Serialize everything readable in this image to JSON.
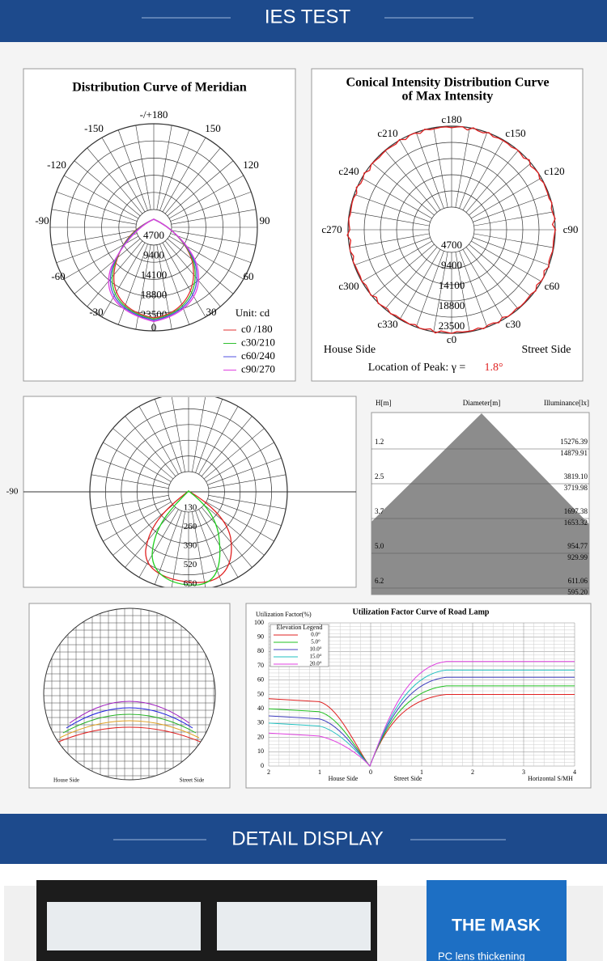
{
  "ies_banner": {
    "title": "IES TEST"
  },
  "meridian": {
    "title": "Distribution Curve of  Meridian",
    "angle_labels": [
      "-/+180",
      "-150",
      "150",
      "-120",
      "120",
      "-90",
      "90",
      "-60",
      "60",
      "-30",
      "30",
      "0"
    ],
    "radial_labels": [
      "4700",
      "9400",
      "14100",
      "18800",
      "23500"
    ],
    "unit": "Unit: cd",
    "legend": [
      "c0 /180",
      "c30/210",
      "c60/240",
      "c90/270"
    ]
  },
  "conical": {
    "title_lines": [
      "Conical Intensity Distribution Curve",
      "of  Max Intensity"
    ],
    "angle_labels": [
      "c180",
      "c210",
      "c150",
      "c240",
      "c120",
      "c270",
      "c90",
      "c300",
      "c60",
      "c330",
      "c30",
      "c0"
    ],
    "radial_labels": [
      "4700",
      "9400",
      "14100",
      "18800",
      "23500"
    ],
    "house_side": "House Side",
    "street_side": "Street Side",
    "peak_label": "Location of Peak:  γ  =",
    "peak_value": "1.8°"
  },
  "polar3": {
    "angle_label": "-90",
    "radial_labels": [
      "130",
      "260",
      "390",
      "520",
      "650"
    ]
  },
  "illuminance": {
    "headers": [
      "H[m]",
      "Diameter[m]",
      "Illuminance[lx]"
    ],
    "rows": [
      {
        "h": "1.2",
        "values": [
          "15276.39",
          "14879.91"
        ]
      },
      {
        "h": "2.5",
        "values": [
          "3819.10",
          "3719.98"
        ]
      },
      {
        "h": "3.7",
        "values": [
          "1697.38",
          "1653.32"
        ]
      },
      {
        "h": "5.0",
        "values": [
          "954.77",
          "929.99"
        ]
      },
      {
        "h": "6.2",
        "values": [
          "611.06",
          "595.20"
        ]
      }
    ]
  },
  "isolux": {
    "house_side": "House Side",
    "street_side": "Street Side"
  },
  "utilization": {
    "title": "Utilization Factor Curve of  Road Lamp",
    "y_label": "Utilization Factor(%)",
    "yticks": [
      "0",
      "10",
      "20",
      "30",
      "40",
      "50",
      "60",
      "70",
      "80",
      "90",
      "100"
    ],
    "legend_title": "Elevation Legend",
    "legend": [
      "0.0°",
      "5.0°",
      "10.0°",
      "15.0°",
      "20.0°"
    ],
    "xticks": [
      "2",
      "1",
      "0",
      "1",
      "2",
      "3",
      "4"
    ],
    "house_side": "House Side",
    "street_side": "Street Side",
    "x_label": "Horizontal  S/MH"
  },
  "detail_banner": {
    "title": "DETAIL DISPLAY"
  },
  "mask": {
    "title": "THE MASK",
    "text": "PC lens thickening"
  }
}
